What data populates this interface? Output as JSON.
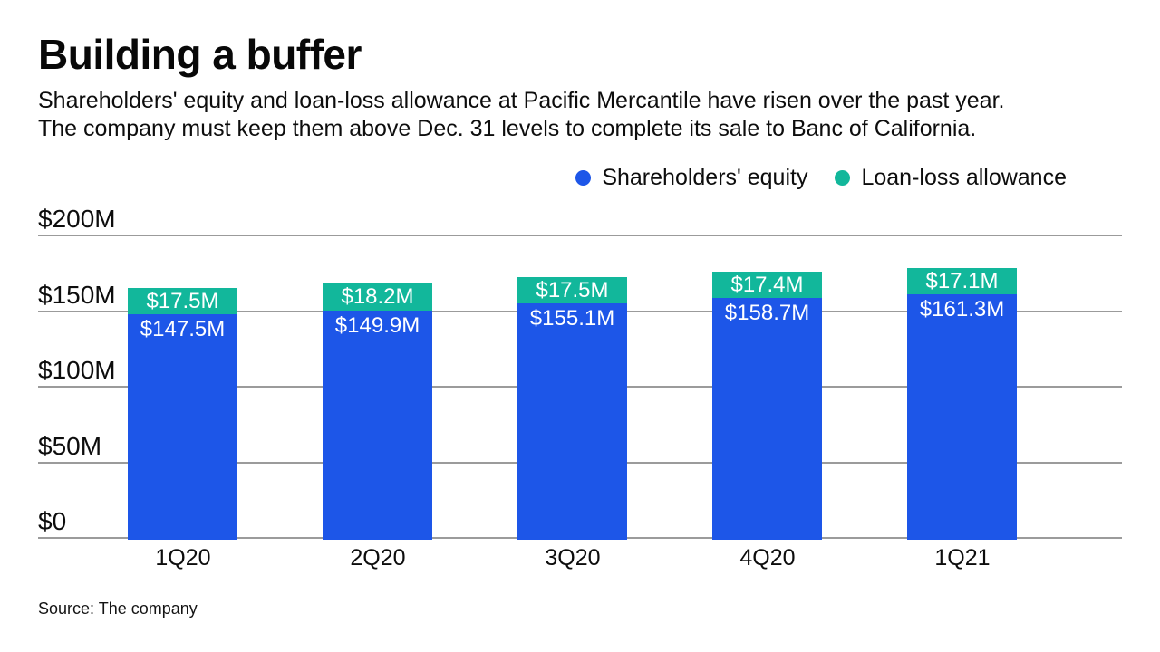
{
  "header": {
    "title": "Building a buffer",
    "subtitle_lines": [
      "Shareholders' equity and loan-loss allowance at Pacific Mercantile have risen over the past year.",
      "The company must keep them above Dec. 31 levels to complete its sale to Banc of California."
    ]
  },
  "legend": [
    {
      "label": "Shareholders' equity",
      "color": "#1d56e8"
    },
    {
      "label": "Loan-loss allowance",
      "color": "#12b79b"
    }
  ],
  "chart_data": {
    "type": "bar",
    "stacked": true,
    "title": "Building a buffer",
    "categories": [
      "1Q20",
      "2Q20",
      "3Q20",
      "4Q20",
      "1Q21"
    ],
    "series": [
      {
        "name": "Shareholders' equity",
        "color": "#1d56e8",
        "values": [
          147.5,
          149.9,
          155.1,
          158.7,
          161.3
        ],
        "labels": [
          "$147.5M",
          "$149.9M",
          "$155.1M",
          "$158.7M",
          "$161.3M"
        ]
      },
      {
        "name": "Loan-loss allowance",
        "color": "#12b79b",
        "values": [
          17.5,
          18.2,
          17.5,
          17.4,
          17.1
        ],
        "labels": [
          "$17.5M",
          "$18.2M",
          "$17.5M",
          "$17.4M",
          "$17.1M"
        ]
      }
    ],
    "y_axis": {
      "min": 0,
      "max": 200,
      "ticks": [
        0,
        50,
        100,
        150,
        200
      ],
      "tick_labels": [
        "$0",
        "$50M",
        "$100M",
        "$150M",
        "$200M"
      ]
    },
    "grid": true,
    "legend_position": "top-right",
    "gridline_color": "#9b9b9b",
    "value_label_color": "#ffffff"
  },
  "footer": {
    "source": "Source: The company"
  }
}
